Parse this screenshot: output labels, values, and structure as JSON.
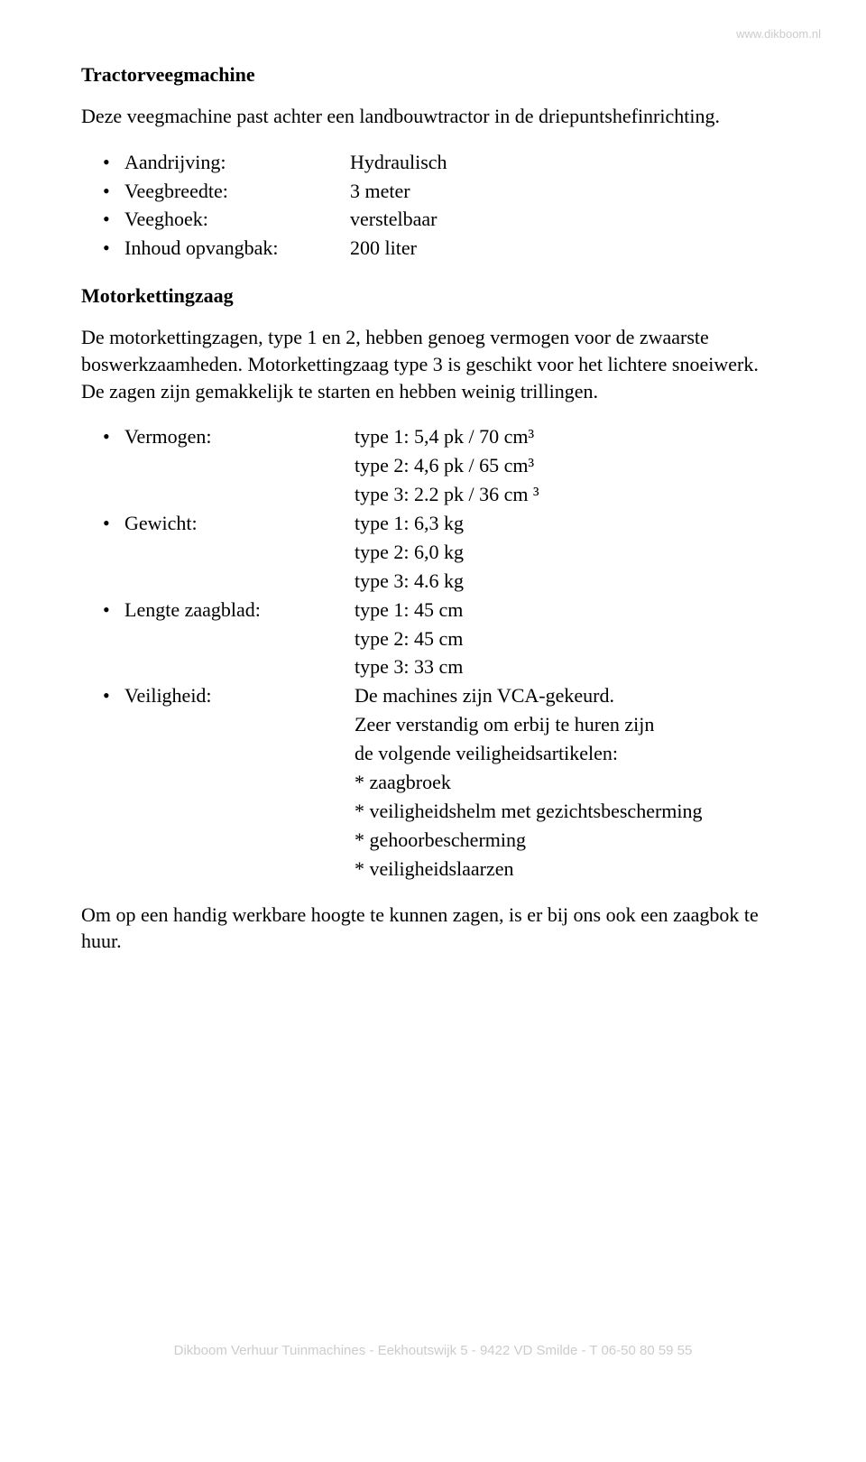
{
  "watermark_top": "www.dikboom.nl",
  "watermark_bottom": "Dikboom Verhuur Tuinmachines - Eekhoutswijk 5 - 9422 VD Smilde - T 06-50 80 59 55",
  "section1": {
    "title": "Tractorveegmachine",
    "intro": "Deze veegmachine past achter een landbouwtractor in de driepuntshefinrichting.",
    "specs": [
      {
        "label": "Aandrijving:",
        "value": "Hydraulisch"
      },
      {
        "label": "Veegbreedte:",
        "value": "3 meter"
      },
      {
        "label": "Veeghoek:",
        "value": "verstelbaar"
      },
      {
        "label": "Inhoud opvangbak:",
        "value": "200 liter"
      }
    ]
  },
  "section2": {
    "title": "Motorkettingzaag",
    "intro": "De motorkettingzagen, type 1 en 2, hebben genoeg vermogen voor de zwaarste boswerkzaamheden. Motorkettingzaag type 3 is geschikt voor het lichtere snoeiwerk. De zagen zijn gemakkelijk te starten en hebben weinig trillingen.",
    "specs": {
      "vermogen": {
        "label": "Vermogen:",
        "lines": [
          "type 1: 5,4 pk / 70 cm³",
          "type 2: 4,6 pk / 65 cm³",
          "type 3: 2.2 pk / 36 cm ³"
        ]
      },
      "gewicht": {
        "label": "Gewicht:",
        "lines": [
          "type 1: 6,3 kg",
          "type 2: 6,0 kg",
          "type 3: 4.6 kg"
        ]
      },
      "lengte": {
        "label": "Lengte zaagblad:",
        "lines": [
          "type 1: 45 cm",
          "type 2: 45 cm",
          "type 3: 33 cm"
        ]
      },
      "veiligheid": {
        "label": "Veiligheid:",
        "lines": [
          "De machines zijn VCA-gekeurd.",
          "Zeer verstandig om erbij te huren zijn",
          "de volgende veiligheidsartikelen:",
          "* zaagbroek",
          "* veiligheidshelm met gezichtsbescherming",
          "* gehoorbescherming",
          "* veiligheidslaarzen"
        ]
      }
    },
    "closing": "Om op een handig werkbare hoogte te kunnen zagen, is er bij ons ook een zaagbok te huur."
  }
}
